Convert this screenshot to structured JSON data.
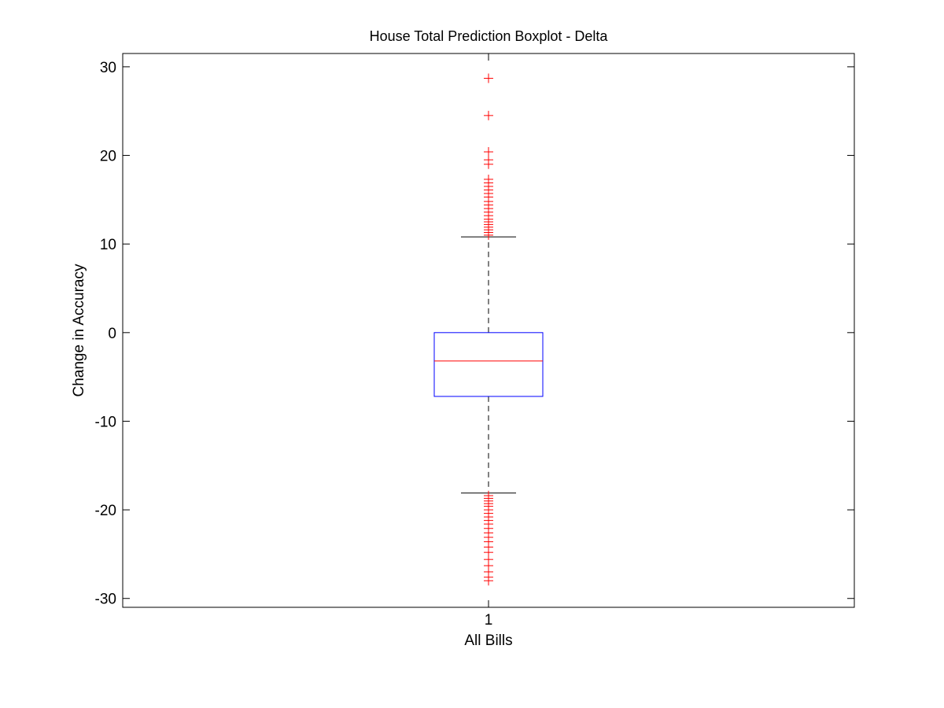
{
  "chart_data": {
    "type": "boxplot",
    "title": "House Total Prediction Boxplot - Delta",
    "xlabel": "All Bills",
    "ylabel": "Change in Accuracy",
    "categories": [
      "1"
    ],
    "ylim": [
      -31,
      31.5
    ],
    "yticks": [
      -30,
      -20,
      -10,
      0,
      10,
      20,
      30
    ],
    "grid": false,
    "colors": {
      "box": "#0000ff",
      "median": "#ff0000",
      "whisker": "#000000",
      "outlier": "#ff0000"
    },
    "series": [
      {
        "category": "1",
        "q1": -7.2,
        "median": -3.2,
        "q3": 0.0,
        "whisker_low": -18.1,
        "whisker_high": 10.8,
        "outliers_high": [
          11.0,
          11.3,
          11.6,
          11.9,
          12.2,
          12.5,
          12.8,
          13.2,
          13.6,
          14.0,
          14.4,
          14.8,
          15.3,
          15.7,
          16.1,
          16.5,
          16.9,
          17.3,
          19.0,
          19.5,
          20.4,
          24.5,
          28.7
        ],
        "outliers_low": [
          -18.4,
          -18.7,
          -19.0,
          -19.3,
          -19.6,
          -20.0,
          -20.4,
          -20.8,
          -21.2,
          -21.6,
          -22.1,
          -22.6,
          -23.1,
          -23.6,
          -24.2,
          -24.8,
          -25.6,
          -26.3,
          -27.0,
          -27.6,
          -28.0
        ]
      }
    ]
  }
}
